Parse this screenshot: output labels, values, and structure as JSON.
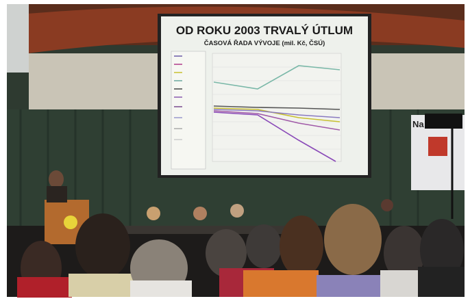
{
  "slide": {
    "title": "OD ROKU 2003 TRVALÝ ÚTLUM",
    "subtitle": "ČASOVÁ ŘADA VÝVOJE (mil. Kč, ČSÚ)"
  },
  "banner": {
    "text": "Na"
  }
}
